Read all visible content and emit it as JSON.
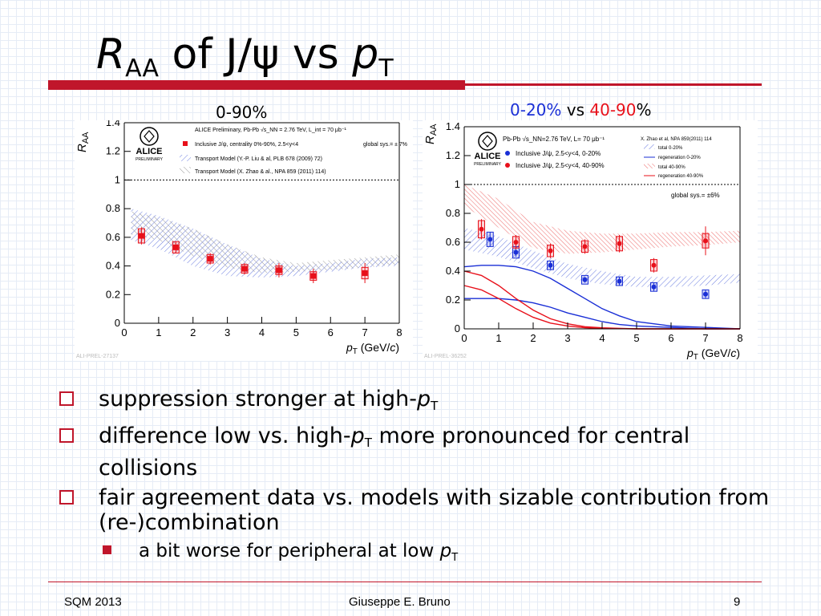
{
  "slide": {
    "title_symbol": "R",
    "title_sub": "AA",
    "title_mid": " of J/ψ vs ",
    "title_var": "p",
    "title_var_sub": "T"
  },
  "panel_left_title": "0-90%",
  "panel_right_title": {
    "a": "0-20%",
    "b": " vs ",
    "c": "40-90",
    "d": "%"
  },
  "bullets": [
    {
      "text": "suppression stronger at high-",
      "var": "p",
      "sub": "T",
      "rest": ""
    },
    {
      "text": "difference low vs. high-",
      "var": "p",
      "sub": "T",
      "rest": " more pronounced for central collisions"
    },
    {
      "text": "fair agreement data vs. models with sizable contribution from (re-)combination",
      "var": "",
      "sub": "",
      "rest": ""
    }
  ],
  "sub_bullet": {
    "text": "a bit worse for peripheral at low ",
    "var": "p",
    "sub": "T"
  },
  "footer": {
    "left": "SQM 2013",
    "center": "Giuseppe E. Bruno",
    "page": "9"
  },
  "chart_data": [
    {
      "type": "scatter",
      "panel": "left",
      "ylabel": "R_AA",
      "xlabel": "p_T (GeV/c)",
      "xlim": [
        0,
        8
      ],
      "ylim": [
        0,
        1.4
      ],
      "x_ticks": [
        0,
        1,
        2,
        3,
        4,
        5,
        6,
        7,
        8
      ],
      "y_ticks": [
        0,
        0.2,
        0.4,
        0.6,
        0.8,
        1,
        1.2,
        1.4
      ],
      "reference_line": 1,
      "label_id": "ALI-PREL-27137",
      "legend": [
        "ALICE Preliminary, Pb-Pb √s_NN = 2.76 TeV, L_int = 70 μb⁻¹",
        "Inclusive J/ψ, centrality 0%-90%, 2.5<y<4",
        "global sys.= ± 7%",
        "Transport Model (Y.-P. Liu & al, PLB 678 (2009) 72)",
        "Transport Model (X. Zhao & al., NPA 859 (2011) 114)"
      ],
      "series": [
        {
          "name": "Inclusive J/ψ, centrality 0%-90%, 2.5<y<4",
          "color": "#e8101a",
          "x": [
            0.5,
            1.5,
            2.5,
            3.5,
            4.5,
            5.5,
            7.0
          ],
          "y": [
            0.61,
            0.53,
            0.45,
            0.38,
            0.37,
            0.33,
            0.35
          ],
          "err": [
            0.06,
            0.04,
            0.04,
            0.04,
            0.05,
            0.05,
            0.07
          ],
          "sys": [
            0.05,
            0.04,
            0.03,
            0.03,
            0.03,
            0.03,
            0.04
          ]
        }
      ],
      "bands": [
        {
          "name": "Transport Model (Y.-P. Liu & al, PLB 678 (2009) 72)",
          "color": "#7f8fd8",
          "style": "hatch-blue",
          "x": [
            0.2,
            1,
            2,
            3,
            4,
            5,
            6,
            7,
            8
          ],
          "lo": [
            0.58,
            0.52,
            0.4,
            0.33,
            0.32,
            0.33,
            0.36,
            0.39,
            0.4
          ],
          "hi": [
            0.8,
            0.75,
            0.66,
            0.55,
            0.45,
            0.4,
            0.42,
            0.45,
            0.46
          ]
        },
        {
          "name": "Transport Model (X. Zhao & al., NPA 859 (2011) 114)",
          "color": "#9a9a9a",
          "style": "hatch-gray",
          "x": [
            0.2,
            1,
            2,
            3,
            4,
            5,
            6,
            7,
            8
          ],
          "lo": [
            0.62,
            0.58,
            0.47,
            0.39,
            0.35,
            0.36,
            0.37,
            0.39,
            0.41
          ],
          "hi": [
            0.78,
            0.74,
            0.66,
            0.55,
            0.46,
            0.42,
            0.44,
            0.46,
            0.48
          ]
        }
      ]
    },
    {
      "type": "scatter",
      "panel": "right",
      "ylabel": "R_AA",
      "xlabel": "p_T (GeV/c)",
      "xlim": [
        0,
        8
      ],
      "ylim": [
        0,
        1.4
      ],
      "x_ticks": [
        0,
        1,
        2,
        3,
        4,
        5,
        6,
        7,
        8
      ],
      "y_ticks": [
        0,
        0.2,
        0.4,
        0.6,
        0.8,
        1,
        1.2,
        1.4
      ],
      "reference_line": 1,
      "label_id": "ALI-PREL-36252",
      "legend": [
        "Pb-Pb √s_NN=2.76 TeV, L= 70 μb⁻¹",
        "Inclusive J/ψ, 2.5<y<4, 0-20%",
        "Inclusive J/ψ, 2.5<y<4, 40-90%",
        "global sys.= ±6%",
        "X. Zhao et al, NPA 859(2011) 114",
        "total 0-20%",
        "regeneration 0-20%",
        "total 40-90%",
        "regeneration 40-90%"
      ],
      "series": [
        {
          "name": "Inclusive J/ψ, 2.5<y<4, 0-20%",
          "color": "#1a2fd6",
          "x": [
            0.75,
            1.5,
            2.5,
            3.5,
            4.5,
            5.5,
            7.0
          ],
          "y": [
            0.62,
            0.53,
            0.44,
            0.34,
            0.33,
            0.29,
            0.24
          ],
          "err": [
            0.05,
            0.03,
            0.03,
            0.02,
            0.03,
            0.03,
            0.03
          ],
          "sys": [
            0.05,
            0.04,
            0.03,
            0.03,
            0.03,
            0.03,
            0.03
          ]
        },
        {
          "name": "Inclusive J/ψ, 2.5<y<4, 40-90%",
          "color": "#e8101a",
          "x": [
            0.5,
            1.5,
            2.5,
            3.5,
            4.5,
            5.5,
            7.0
          ],
          "y": [
            0.69,
            0.6,
            0.54,
            0.57,
            0.59,
            0.44,
            0.61
          ],
          "err": [
            0.07,
            0.05,
            0.05,
            0.05,
            0.06,
            0.05,
            0.1
          ],
          "sys": [
            0.06,
            0.04,
            0.04,
            0.04,
            0.05,
            0.04,
            0.05
          ]
        }
      ],
      "bands": [
        {
          "name": "total 0-20%",
          "color": "#6b7de0",
          "style": "hatch-blue",
          "x": [
            0,
            1,
            2,
            3,
            4,
            5,
            6,
            7,
            8
          ],
          "lo": [
            0.55,
            0.5,
            0.42,
            0.35,
            0.31,
            0.29,
            0.29,
            0.3,
            0.32
          ],
          "hi": [
            0.7,
            0.64,
            0.54,
            0.45,
            0.4,
            0.36,
            0.36,
            0.37,
            0.38
          ]
        },
        {
          "name": "total 40-90%",
          "color": "#f08080",
          "style": "hatch-red",
          "x": [
            0,
            1,
            2,
            3,
            4,
            5,
            6,
            7,
            8
          ],
          "lo": [
            0.85,
            0.7,
            0.56,
            0.52,
            0.53,
            0.55,
            0.57,
            0.58,
            0.6
          ],
          "hi": [
            1.0,
            0.9,
            0.74,
            0.68,
            0.66,
            0.66,
            0.67,
            0.67,
            0.68
          ]
        }
      ],
      "lines": [
        {
          "name": "regeneration 0-20% (upper)",
          "color": "#1a2fd6",
          "x": [
            0,
            0.5,
            1,
            1.5,
            2,
            2.5,
            3,
            3.5,
            4,
            4.5,
            5,
            6,
            7,
            8
          ],
          "y": [
            0.43,
            0.44,
            0.44,
            0.43,
            0.4,
            0.35,
            0.28,
            0.21,
            0.14,
            0.09,
            0.05,
            0.02,
            0.01,
            0.0
          ]
        },
        {
          "name": "regeneration 0-20% (lower)",
          "color": "#1a2fd6",
          "x": [
            0,
            0.5,
            1,
            1.5,
            2,
            2.5,
            3,
            3.5,
            4,
            4.5,
            5,
            6,
            7,
            8
          ],
          "y": [
            0.21,
            0.21,
            0.21,
            0.2,
            0.18,
            0.15,
            0.11,
            0.08,
            0.05,
            0.03,
            0.02,
            0.01,
            0.0,
            0.0
          ]
        },
        {
          "name": "regeneration 40-90% (upper)",
          "color": "#e8101a",
          "x": [
            0,
            0.5,
            1,
            1.5,
            2,
            2.5,
            3,
            3.5,
            4,
            5,
            6,
            8
          ],
          "y": [
            0.4,
            0.37,
            0.3,
            0.21,
            0.13,
            0.07,
            0.035,
            0.015,
            0.007,
            0.0,
            0.0,
            0.0
          ]
        },
        {
          "name": "regeneration 40-90% (lower)",
          "color": "#e8101a",
          "x": [
            0,
            0.5,
            1,
            1.5,
            2,
            2.5,
            3,
            3.5,
            4,
            5,
            6,
            8
          ],
          "y": [
            0.3,
            0.27,
            0.21,
            0.14,
            0.08,
            0.04,
            0.02,
            0.008,
            0.003,
            0.0,
            0.0,
            0.0
          ]
        }
      ]
    }
  ]
}
